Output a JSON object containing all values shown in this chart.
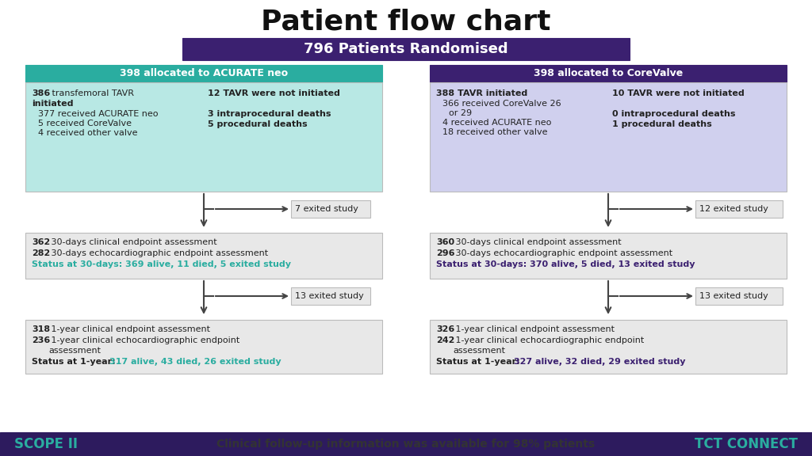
{
  "title": "Patient flow chart",
  "bg_color": "#ffffff",
  "footer_bg": "#2d1b5e",
  "rand_box_bg": "#3b2070",
  "rand_box_text": "796 Patients Randomised",
  "rand_box_text_color": "#ffffff",
  "left_header_bg": "#2aada0",
  "left_header_text": "398 allocated to ACURATE neo",
  "left_body_bg": "#b8e8e4",
  "right_header_bg": "#3b2070",
  "right_header_text": "398 allocated to CoreValve",
  "right_body_bg": "#d0d0ee",
  "box_bg": "#e8e8e8",
  "box_border": "#bbbbbb",
  "arrow_color": "#444444",
  "text_color": "#222222",
  "left_status30_color": "#2aada0",
  "right_status30_color": "#3b2070",
  "left_status1y_color": "#2aada0",
  "right_status1y_color": "#3b2070",
  "footer_text": "Clinical follow-up information was available for 98% patients",
  "scope_color": "#2aada0",
  "tct_color": "#2aada0"
}
